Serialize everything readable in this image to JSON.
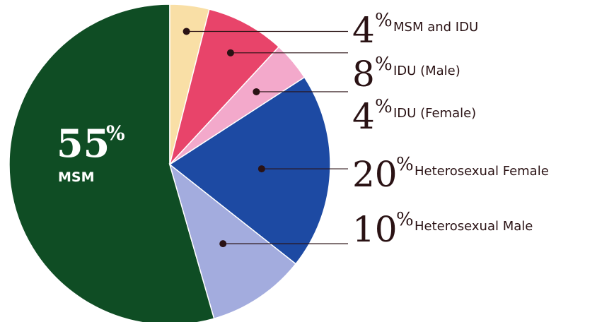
{
  "chart_data": {
    "type": "pie",
    "slices": [
      {
        "label": "MSM",
        "value": 55,
        "display": "55",
        "color": "#0f4d24"
      },
      {
        "label": "MSM and IDU",
        "value": 4,
        "display": "4",
        "color": "#f9dfa6"
      },
      {
        "label": "IDU (Male)",
        "value": 8,
        "display": "8",
        "color": "#e8446a"
      },
      {
        "label": "IDU (Female)",
        "value": 4,
        "display": "4",
        "color": "#f3a9cb"
      },
      {
        "label": "Heterosexual Female",
        "value": 20,
        "display": "20",
        "color": "#1d4aa3"
      },
      {
        "label": "Heterosexual Male",
        "value": 10,
        "display": "10",
        "color": "#a3acde"
      }
    ],
    "percent_sign": "%"
  }
}
